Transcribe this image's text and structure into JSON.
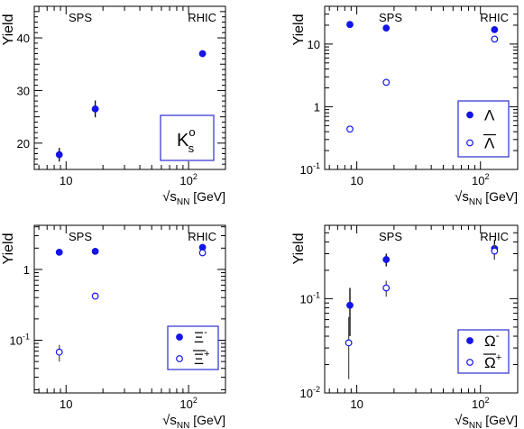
{
  "colors": {
    "marker": "#1414e6",
    "axis": "#000000",
    "legend_border": "#3b3bd6"
  },
  "chart_data": [
    {
      "id": "k0s",
      "type": "scatter",
      "y_title": "Yield",
      "x_title_prefix": "√s",
      "x_title_sub": "NN",
      "x_title_unit": " [GeV]",
      "x_scale": "log",
      "y_scale": "linear",
      "xlim": [
        5.5,
        200
      ],
      "ylim": [
        15,
        46
      ],
      "x_ticks": [
        {
          "v": 10,
          "base": "10",
          "exp": ""
        },
        {
          "v": 100,
          "base": "10",
          "exp": "2"
        }
      ],
      "y_ticks": [
        {
          "v": 20,
          "base": "20",
          "exp": ""
        },
        {
          "v": 30,
          "base": "30",
          "exp": ""
        },
        {
          "v": 40,
          "base": "40",
          "exp": ""
        }
      ],
      "annotations": [
        "SPS",
        "RHIC"
      ],
      "legend": {
        "placement": "bottom-right",
        "type": "label",
        "text": "K",
        "sup": "o",
        "sub": "s"
      },
      "series": [
        {
          "name": "K0s",
          "filled": true,
          "points": [
            {
              "x": 8.8,
              "y": 17.8,
              "err": 1.3
            },
            {
              "x": 17.3,
              "y": 26.5,
              "err": 1.6
            },
            {
              "x": 130,
              "y": 37.0,
              "err": 0.3
            }
          ]
        }
      ]
    },
    {
      "id": "lambda",
      "type": "scatter",
      "y_title": "Yield",
      "x_title_prefix": "√s",
      "x_title_sub": "NN",
      "x_title_unit": " [GeV]",
      "x_scale": "log",
      "y_scale": "log",
      "xlim": [
        5.5,
        200
      ],
      "ylim": [
        0.1,
        40
      ],
      "x_ticks": [
        {
          "v": 10,
          "base": "10",
          "exp": ""
        },
        {
          "v": 100,
          "base": "10",
          "exp": "2"
        }
      ],
      "y_ticks": [
        {
          "v": 0.1,
          "base": "10",
          "exp": "-1"
        },
        {
          "v": 1,
          "base": "1",
          "exp": ""
        },
        {
          "v": 10,
          "base": "10",
          "exp": ""
        }
      ],
      "annotations": [
        "SPS",
        "RHIC"
      ],
      "legend": {
        "placement": "bottom-right",
        "type": "entries",
        "entries": [
          {
            "symbol": "filled",
            "text": "Λ",
            "bar": false,
            "sup": ""
          },
          {
            "symbol": "open",
            "text": "Λ",
            "bar": true,
            "sup": ""
          }
        ]
      },
      "series": [
        {
          "name": "Λ",
          "filled": true,
          "points": [
            {
              "x": 8.8,
              "y": 20.5,
              "err": 0
            },
            {
              "x": 17.3,
              "y": 18.0,
              "err": 0
            },
            {
              "x": 130,
              "y": 17.0,
              "err": 0
            }
          ]
        },
        {
          "name": "anti-Λ",
          "filled": false,
          "points": [
            {
              "x": 8.8,
              "y": 0.44,
              "err": 0
            },
            {
              "x": 17.3,
              "y": 2.45,
              "err": 0
            },
            {
              "x": 130,
              "y": 12.0,
              "err": 0
            }
          ]
        }
      ]
    },
    {
      "id": "xi",
      "type": "scatter",
      "y_title": "Yield",
      "x_title_prefix": "√s",
      "x_title_sub": "NN",
      "x_title_unit": " [GeV]",
      "x_scale": "log",
      "y_scale": "log",
      "xlim": [
        5.5,
        200
      ],
      "ylim": [
        0.018,
        4.2
      ],
      "x_ticks": [
        {
          "v": 10,
          "base": "10",
          "exp": ""
        },
        {
          "v": 100,
          "base": "10",
          "exp": "2"
        }
      ],
      "y_ticks": [
        {
          "v": 0.1,
          "base": "10",
          "exp": "-1"
        },
        {
          "v": 1,
          "base": "1",
          "exp": ""
        }
      ],
      "annotations": [
        "SPS",
        "RHIC"
      ],
      "legend": {
        "placement": "bottom-right",
        "type": "entries",
        "entries": [
          {
            "symbol": "filled",
            "text": "Ξ",
            "bar": false,
            "sup": "-"
          },
          {
            "symbol": "open",
            "text": "Ξ",
            "bar": true,
            "sup": "+"
          }
        ]
      },
      "series": [
        {
          "name": "Ξ-",
          "filled": true,
          "points": [
            {
              "x": 8.8,
              "y": 1.75,
              "err": 0
            },
            {
              "x": 17.3,
              "y": 1.8,
              "err": 0
            },
            {
              "x": 130,
              "y": 2.05,
              "err": 0.15
            }
          ]
        },
        {
          "name": "Ξ+",
          "filled": false,
          "points": [
            {
              "x": 8.8,
              "y": 0.068,
              "err": 0.018
            },
            {
              "x": 17.3,
              "y": 0.42,
              "err": 0
            },
            {
              "x": 130,
              "y": 1.72,
              "err": 0.15
            }
          ]
        }
      ]
    },
    {
      "id": "omega",
      "type": "scatter",
      "y_title": "Yield",
      "x_title_prefix": "√s",
      "x_title_sub": "NN",
      "x_title_unit": " [GeV]",
      "x_scale": "log",
      "y_scale": "log",
      "xlim": [
        5.5,
        200
      ],
      "ylim": [
        0.01,
        0.6
      ],
      "x_ticks": [
        {
          "v": 10,
          "base": "10",
          "exp": ""
        },
        {
          "v": 100,
          "base": "10",
          "exp": "2"
        }
      ],
      "y_ticks": [
        {
          "v": 0.01,
          "base": "10",
          "exp": "-2"
        },
        {
          "v": 0.1,
          "base": "10",
          "exp": "-1"
        }
      ],
      "annotations": [
        "SPS",
        "RHIC"
      ],
      "legend": {
        "placement": "bottom-right",
        "type": "entries",
        "entries": [
          {
            "symbol": "filled",
            "text": "Ω",
            "bar": false,
            "sup": "-"
          },
          {
            "symbol": "open",
            "text": "Ω",
            "bar": true,
            "sup": "+"
          }
        ]
      },
      "series": [
        {
          "name": "Ω-",
          "filled": true,
          "points": [
            {
              "x": 8.8,
              "y": 0.085,
              "errlo": 0.045,
              "errhi": 0.045
            },
            {
              "x": 17.3,
              "y": 0.26,
              "errlo": 0.04,
              "errhi": 0.04
            },
            {
              "x": 130,
              "y": 0.34,
              "errlo": 0.08,
              "errhi": 0.08
            }
          ]
        },
        {
          "name": "Ω+",
          "filled": false,
          "points": [
            {
              "x": 8.6,
              "y": 0.034,
              "errlo": 0.02,
              "errhi": 0.03
            },
            {
              "x": 17.3,
              "y": 0.13,
              "errlo": 0.025,
              "errhi": 0.025
            },
            {
              "x": 130,
              "y": 0.32,
              "errlo": 0.06,
              "errhi": 0.06
            }
          ]
        }
      ]
    }
  ]
}
